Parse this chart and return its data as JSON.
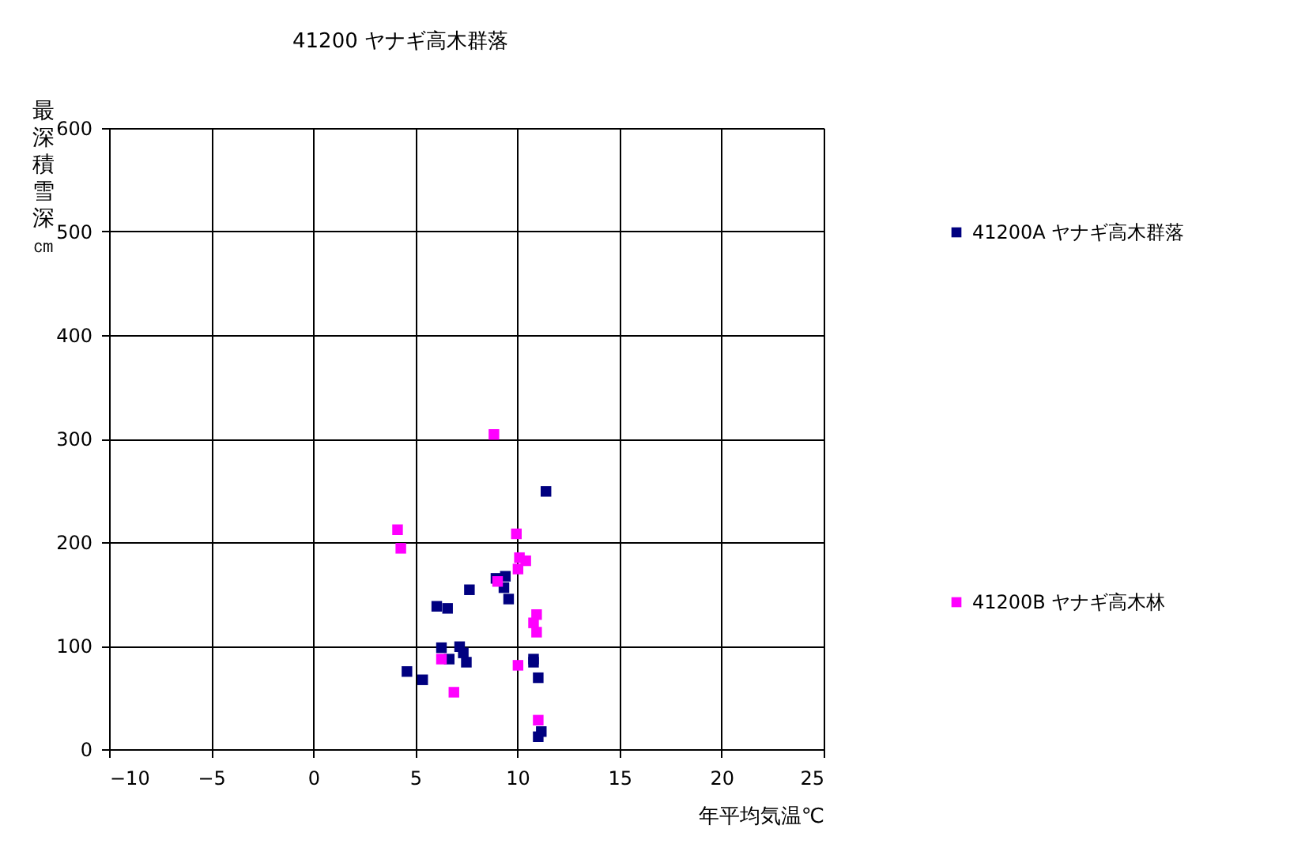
{
  "chart_data": {
    "type": "scatter",
    "title": "41200 ヤナギ高木群落",
    "xlabel": "年平均気温℃",
    "ylabel": "最深積雪深㎝",
    "xlim": [
      -10,
      25
    ],
    "xticks": [
      -10,
      -5,
      0,
      5,
      10,
      15,
      20,
      25
    ],
    "ylim": [
      0,
      600
    ],
    "yticks": [
      0,
      100,
      200,
      300,
      400,
      500,
      600
    ],
    "grid": true,
    "legend": "right",
    "marker": "square",
    "series": [
      {
        "name": "41200A ヤナギ高木群落",
        "color": "#000080",
        "x": [
          11.4,
          8.95,
          9.41,
          9.34,
          9.57,
          7.65,
          6.05,
          6.58,
          6.28,
          7.17,
          7.35,
          7.5,
          6.66,
          4.59,
          5.36,
          10.79,
          10.79,
          11.02,
          11.17,
          11.02
        ],
        "values": [
          249,
          165,
          167,
          156,
          145,
          154,
          138,
          136,
          98,
          99,
          93,
          84,
          87,
          75,
          67,
          87,
          84,
          69,
          17,
          12
        ]
      },
      {
        "name": "41200B ヤナギ高木林",
        "color": "#ff00ff",
        "x": [
          8.85,
          4.13,
          4.29,
          9.95,
          10.1,
          10.41,
          10.03,
          9.03,
          10.94,
          10.79,
          10.94,
          6.28,
          10.03,
          6.89,
          11.02
        ],
        "values": [
          304,
          212,
          194,
          208,
          185,
          182,
          174,
          162,
          130,
          122,
          113,
          87,
          81,
          55,
          28
        ]
      }
    ]
  }
}
